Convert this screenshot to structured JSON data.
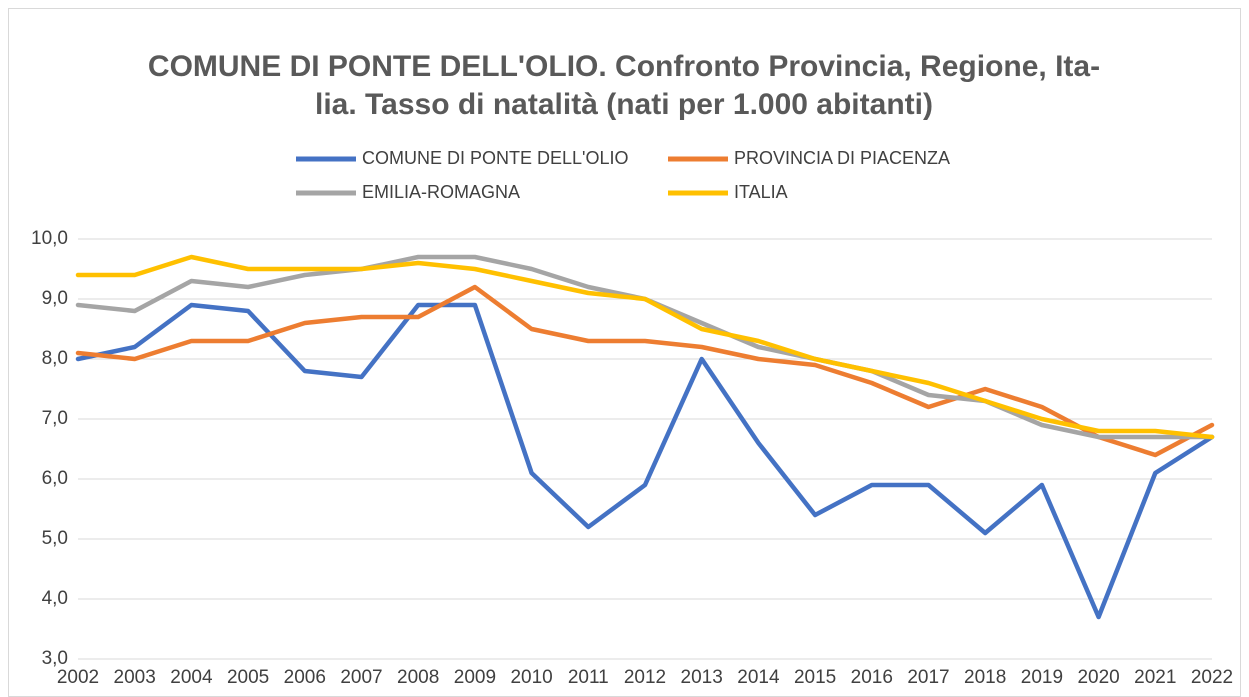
{
  "chart_data": {
    "type": "line",
    "title": [
      "COMUNE DI PONTE DELL'OLIO. Confronto Provincia, Regione, Ita-",
      "lia. Tasso di natalità (nati per 1.000 abitanti)"
    ],
    "categories": [
      "2002",
      "2003",
      "2004",
      "2005",
      "2006",
      "2007",
      "2008",
      "2009",
      "2010",
      "2011",
      "2012",
      "2013",
      "2014",
      "2015",
      "2016",
      "2017",
      "2018",
      "2019",
      "2020",
      "2021",
      "2022"
    ],
    "series": [
      {
        "name": "COMUNE DI PONTE DELL'OLIO",
        "color": "#4472c4",
        "values": [
          8.0,
          8.2,
          8.9,
          8.8,
          7.8,
          7.7,
          8.9,
          8.9,
          6.1,
          5.2,
          5.9,
          8.0,
          6.6,
          5.4,
          5.9,
          5.9,
          5.1,
          5.9,
          3.7,
          6.1,
          6.7
        ]
      },
      {
        "name": "PROVINCIA DI PIACENZA",
        "color": "#ed7d31",
        "values": [
          8.1,
          8.0,
          8.3,
          8.3,
          8.6,
          8.7,
          8.7,
          9.2,
          8.5,
          8.3,
          8.3,
          8.2,
          8.0,
          7.9,
          7.6,
          7.2,
          7.5,
          7.2,
          6.7,
          6.4,
          6.9
        ]
      },
      {
        "name": "EMILIA-ROMAGNA",
        "color": "#a5a5a5",
        "values": [
          8.9,
          8.8,
          9.3,
          9.2,
          9.4,
          9.5,
          9.7,
          9.7,
          9.5,
          9.2,
          9.0,
          8.6,
          8.2,
          8.0,
          7.8,
          7.4,
          7.3,
          6.9,
          6.7,
          6.7,
          6.7
        ]
      },
      {
        "name": "ITALIA",
        "color": "#ffc000",
        "values": [
          9.4,
          9.4,
          9.7,
          9.5,
          9.5,
          9.5,
          9.6,
          9.5,
          9.3,
          9.1,
          9.0,
          8.5,
          8.3,
          8.0,
          7.8,
          7.6,
          7.3,
          7.0,
          6.8,
          6.8,
          6.7
        ]
      }
    ],
    "ylim": [
      3,
      10
    ],
    "yticks": [
      {
        "value": 3,
        "label": "3,0"
      },
      {
        "value": 4,
        "label": "4,0"
      },
      {
        "value": 5,
        "label": "5,0"
      },
      {
        "value": 6,
        "label": "6,0"
      },
      {
        "value": 7,
        "label": "7,0"
      },
      {
        "value": 8,
        "label": "8,0"
      },
      {
        "value": 9,
        "label": "9,0"
      },
      {
        "value": 10,
        "label": "10,0"
      }
    ],
    "grid": true,
    "legend": "top"
  }
}
